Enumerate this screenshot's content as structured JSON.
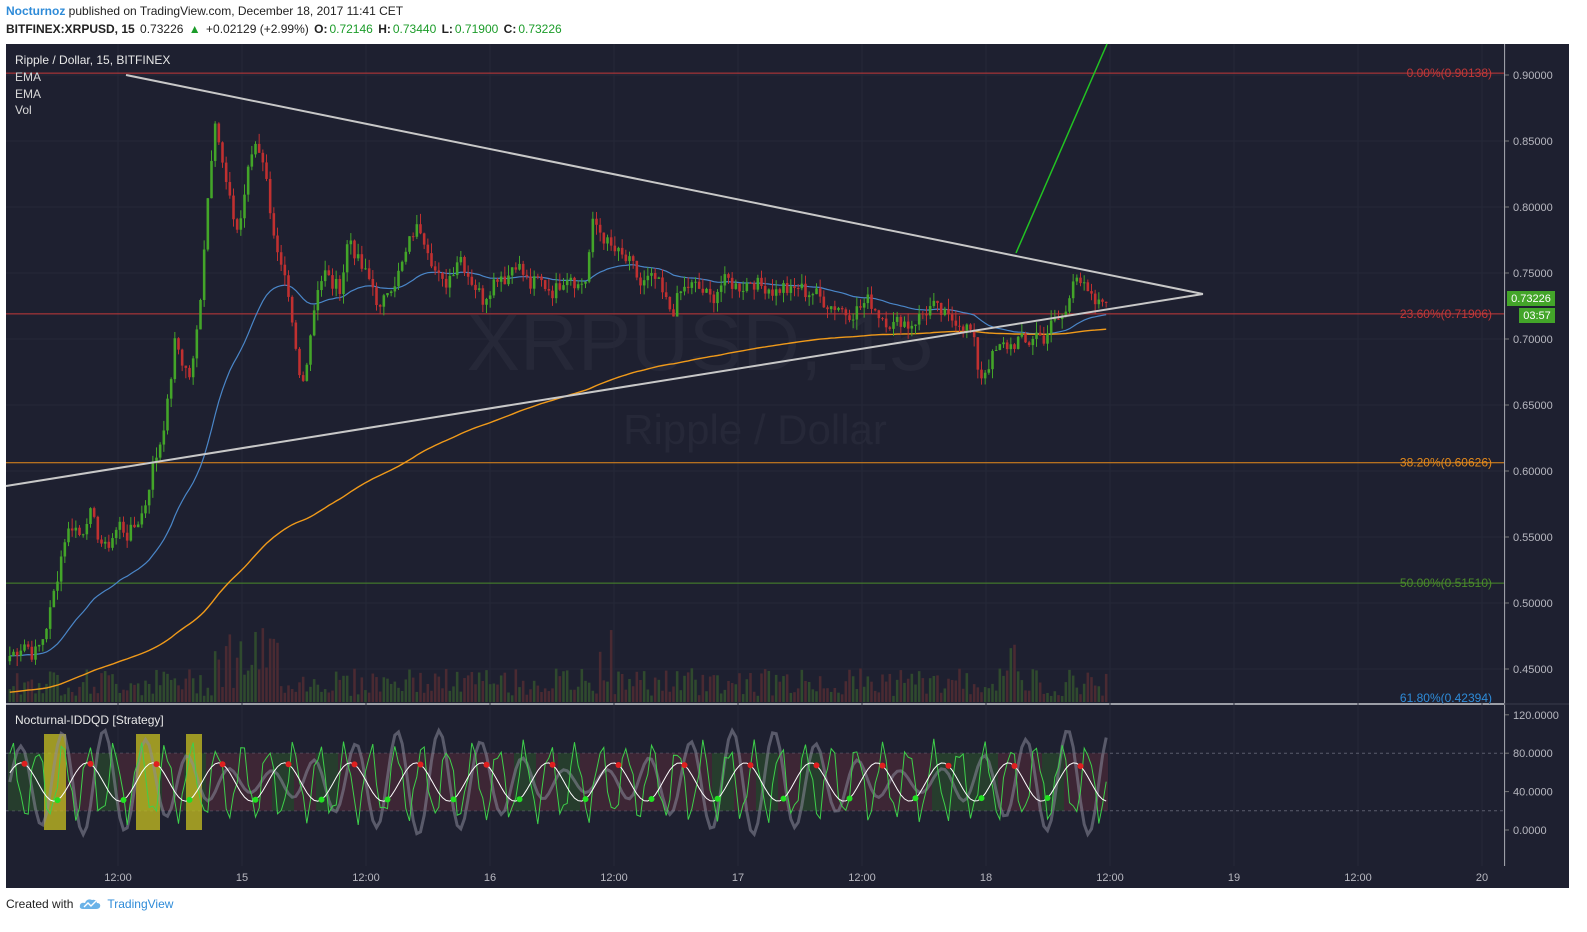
{
  "header": {
    "author": "Nocturnoz",
    "published_text": "published on TradingView.com, December 18, 2017 11:41 CET",
    "symbol_line": "BITFINEX:XRPUSD, 15",
    "last": "0.73226",
    "change": "+0.02129 (+2.99%)",
    "open_label": "O:",
    "open": "0.72146",
    "high_label": "H:",
    "high": "0.73440",
    "low_label": "L:",
    "low": "0.71900",
    "close_label": "C:",
    "close": "0.73226"
  },
  "legend": {
    "title": "Ripple / Dollar, 15, BITFINEX",
    "items": [
      "EMA",
      "EMA",
      "Vol"
    ],
    "indicator": "Nocturnal-IDDQD [Strategy]"
  },
  "watermark": {
    "symbol": "XRPUSD, 15",
    "name": "Ripple / Dollar"
  },
  "footer": {
    "created_with": "Created with",
    "brand": "TradingView"
  },
  "colors": {
    "background": "#1e2030",
    "up": "#43a529",
    "down": "#c03030",
    "ema_fast": "#4a86c8",
    "ema_slow": "#f09a1a",
    "trendline": "#c8c8c8",
    "breakout": "#22c322"
  },
  "chart_data": {
    "type": "candlestick",
    "price_axis": {
      "range": [
        0.425,
        0.925
      ],
      "ticks": [
        "0.90000",
        "0.85000",
        "0.80000",
        "0.75000",
        "0.70000",
        "0.65000",
        "0.60000",
        "0.55000",
        "0.50000",
        "0.45000"
      ],
      "last_price": "0.73226",
      "countdown": "03:57"
    },
    "time_axis": {
      "ticks": [
        "12:00",
        "15",
        "12:00",
        "16",
        "12:00",
        "17",
        "12:00",
        "18",
        "12:00",
        "19",
        "12:00",
        "20"
      ]
    },
    "fib_levels": [
      {
        "label": "0.00%(0.90138)",
        "value": 0.90138,
        "color": "#c43838"
      },
      {
        "label": "23.60%(0.71906)",
        "value": 0.71906,
        "color": "#c43838"
      },
      {
        "label": "38.20%(0.60626)",
        "value": 0.60626,
        "color": "#e58a1b"
      },
      {
        "label": "50.00%(0.51510)",
        "value": 0.5151,
        "color": "#4a8a2a"
      },
      {
        "label": "61.80%(0.42394)",
        "value": 0.42394,
        "color": "#2e8bd8"
      }
    ],
    "close_path": [
      [
        0,
        0.46
      ],
      [
        1,
        0.465
      ],
      [
        2,
        0.47
      ],
      [
        3,
        0.46
      ],
      [
        4,
        0.47
      ],
      [
        5,
        0.49
      ],
      [
        6,
        0.52
      ],
      [
        7,
        0.55
      ],
      [
        8,
        0.56
      ],
      [
        9,
        0.55
      ],
      [
        10,
        0.57
      ],
      [
        11,
        0.555
      ],
      [
        12,
        0.54
      ],
      [
        13,
        0.55
      ],
      [
        14,
        0.56
      ],
      [
        15,
        0.55
      ],
      [
        16,
        0.56
      ],
      [
        17,
        0.57
      ],
      [
        18,
        0.6
      ],
      [
        19,
        0.62
      ],
      [
        20,
        0.65
      ],
      [
        21,
        0.7
      ],
      [
        22,
        0.68
      ],
      [
        23,
        0.67
      ],
      [
        24,
        0.72
      ],
      [
        25,
        0.8
      ],
      [
        26,
        0.87
      ],
      [
        27,
        0.83
      ],
      [
        28,
        0.8
      ],
      [
        29,
        0.78
      ],
      [
        30,
        0.82
      ],
      [
        31,
        0.85
      ],
      [
        32,
        0.84
      ],
      [
        33,
        0.8
      ],
      [
        34,
        0.76
      ],
      [
        35,
        0.74
      ],
      [
        36,
        0.7
      ],
      [
        37,
        0.66
      ],
      [
        38,
        0.7
      ],
      [
        39,
        0.74
      ],
      [
        40,
        0.75
      ],
      [
        41,
        0.74
      ],
      [
        42,
        0.74
      ],
      [
        43,
        0.78
      ],
      [
        44,
        0.76
      ],
      [
        45,
        0.75
      ],
      [
        46,
        0.74
      ],
      [
        47,
        0.72
      ],
      [
        48,
        0.74
      ],
      [
        49,
        0.745
      ],
      [
        50,
        0.76
      ],
      [
        51,
        0.78
      ],
      [
        52,
        0.785
      ],
      [
        53,
        0.77
      ],
      [
        54,
        0.75
      ],
      [
        55,
        0.74
      ],
      [
        56,
        0.75
      ],
      [
        57,
        0.765
      ],
      [
        58,
        0.75
      ],
      [
        59,
        0.74
      ],
      [
        60,
        0.73
      ],
      [
        61,
        0.74
      ],
      [
        62,
        0.75
      ],
      [
        63,
        0.745
      ],
      [
        64,
        0.76
      ],
      [
        65,
        0.75
      ],
      [
        66,
        0.74
      ],
      [
        67,
        0.745
      ],
      [
        68,
        0.74
      ],
      [
        69,
        0.735
      ],
      [
        70,
        0.745
      ],
      [
        71,
        0.75
      ],
      [
        72,
        0.74
      ],
      [
        73,
        0.745
      ],
      [
        74,
        0.79
      ],
      [
        75,
        0.78
      ],
      [
        76,
        0.77
      ],
      [
        77,
        0.765
      ],
      [
        78,
        0.76
      ],
      [
        79,
        0.755
      ],
      [
        80,
        0.74
      ],
      [
        81,
        0.745
      ],
      [
        82,
        0.745
      ],
      [
        83,
        0.73
      ],
      [
        84,
        0.72
      ],
      [
        85,
        0.735
      ],
      [
        86,
        0.74
      ],
      [
        87,
        0.74
      ],
      [
        88,
        0.735
      ],
      [
        89,
        0.73
      ],
      [
        90,
        0.74
      ],
      [
        91,
        0.745
      ],
      [
        92,
        0.74
      ],
      [
        93,
        0.74
      ],
      [
        94,
        0.745
      ],
      [
        95,
        0.74
      ],
      [
        96,
        0.74
      ],
      [
        97,
        0.735
      ],
      [
        98,
        0.74
      ],
      [
        99,
        0.735
      ],
      [
        100,
        0.74
      ],
      [
        101,
        0.735
      ],
      [
        102,
        0.735
      ],
      [
        103,
        0.73
      ],
      [
        104,
        0.725
      ],
      [
        105,
        0.725
      ],
      [
        106,
        0.72
      ],
      [
        107,
        0.72
      ],
      [
        108,
        0.725
      ],
      [
        109,
        0.73
      ],
      [
        110,
        0.72
      ],
      [
        111,
        0.715
      ],
      [
        112,
        0.71
      ],
      [
        113,
        0.715
      ],
      [
        114,
        0.71
      ],
      [
        115,
        0.715
      ],
      [
        116,
        0.72
      ],
      [
        117,
        0.725
      ],
      [
        118,
        0.72
      ],
      [
        119,
        0.715
      ],
      [
        120,
        0.715
      ],
      [
        121,
        0.71
      ],
      [
        122,
        0.705
      ],
      [
        123,
        0.67
      ],
      [
        124,
        0.68
      ],
      [
        125,
        0.69
      ],
      [
        126,
        0.695
      ],
      [
        127,
        0.695
      ],
      [
        128,
        0.7
      ],
      [
        129,
        0.695
      ],
      [
        130,
        0.705
      ],
      [
        131,
        0.7
      ],
      [
        132,
        0.71
      ],
      [
        133,
        0.715
      ],
      [
        134,
        0.72
      ],
      [
        135,
        0.755
      ],
      [
        136,
        0.74
      ],
      [
        137,
        0.73
      ],
      [
        138,
        0.725
      ],
      [
        139,
        0.73226
      ]
    ]
  }
}
